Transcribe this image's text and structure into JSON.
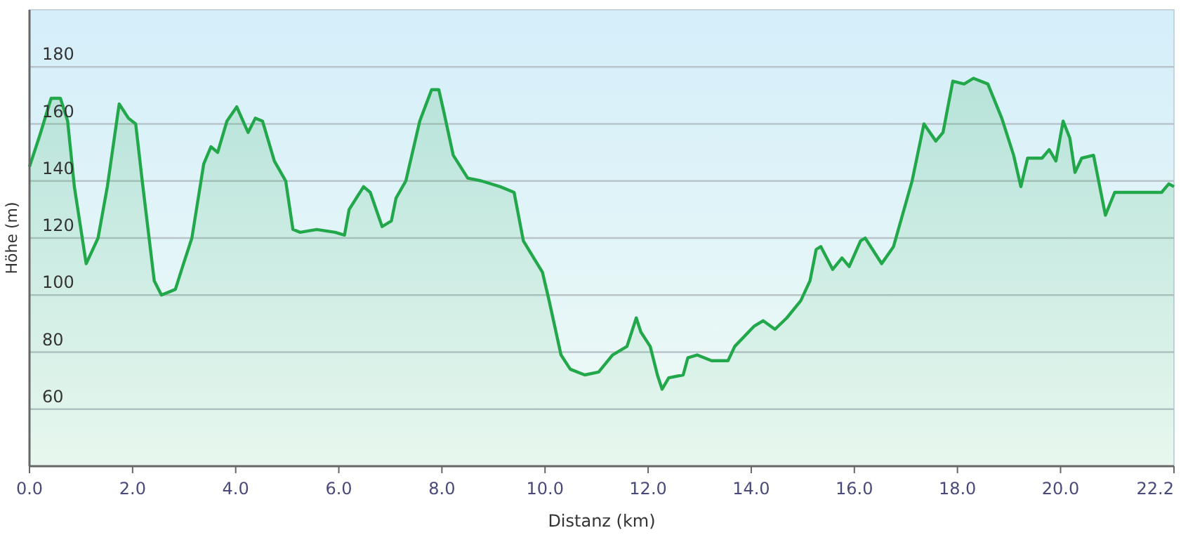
{
  "chart_data": {
    "type": "area",
    "xlabel": "Distanz  (km)",
    "ylabel": "Höhe (m)",
    "xlim": [
      0,
      22.2
    ],
    "ylim": [
      40,
      200
    ],
    "xticks": [
      {
        "value": 0,
        "label": "0.0"
      },
      {
        "value": 2,
        "label": "2.0"
      },
      {
        "value": 4,
        "label": "4.0"
      },
      {
        "value": 6,
        "label": "6.0"
      },
      {
        "value": 8,
        "label": "8.0"
      },
      {
        "value": 10,
        "label": "10.0"
      },
      {
        "value": 12,
        "label": "12.0"
      },
      {
        "value": 14,
        "label": "14.0"
      },
      {
        "value": 16,
        "label": "16.0"
      },
      {
        "value": 18,
        "label": "18.0"
      },
      {
        "value": 20,
        "label": "20.0"
      },
      22.2
    ],
    "yticks": [
      60,
      80,
      100,
      120,
      140,
      160,
      180
    ],
    "grid": "y",
    "line_style": "solid",
    "x": [
      0,
      0.2,
      0.42,
      0.6,
      0.74,
      0.87,
      1.1,
      1.33,
      1.51,
      1.74,
      1.92,
      2.06,
      2.2,
      2.42,
      2.56,
      2.83,
      2.97,
      3.15,
      3.38,
      3.52,
      3.65,
      3.83,
      4.02,
      4.24,
      4.38,
      4.52,
      4.75,
      4.97,
      5.11,
      5.25,
      5.57,
      5.93,
      6.11,
      6.2,
      6.48,
      6.61,
      6.84,
      7.02,
      7.11,
      7.3,
      7.57,
      7.8,
      7.94,
      8.04,
      8.22,
      8.5,
      8.77,
      9.13,
      9.4,
      9.58,
      9.95,
      10.08,
      10.31,
      10.49,
      10.77,
      11.04,
      11.31,
      11.59,
      11.77,
      11.86,
      12.04,
      12.18,
      12.27,
      12.4,
      12.68,
      12.77,
      12.95,
      13.23,
      13.55,
      13.68,
      14.05,
      14.23,
      14.46,
      14.69,
      14.96,
      15.14,
      15.26,
      15.35,
      15.58,
      15.76,
      15.9,
      16.12,
      16.21,
      16.53,
      16.76,
      17.12,
      17.35,
      17.58,
      17.72,
      17.91,
      18.13,
      18.31,
      18.59,
      18.86,
      19.09,
      19.23,
      19.36,
      19.64,
      19.78,
      19.91,
      20.05,
      20.18,
      20.28,
      20.41,
      20.64,
      20.87,
      21.05,
      21.23,
      21.78,
      21.96,
      22.1,
      22.2
    ],
    "series": [
      {
        "color": "#22a84a",
        "values": [
          145,
          156,
          169,
          169,
          161,
          138,
          111,
          120,
          138,
          167,
          162,
          160,
          138,
          105,
          100,
          102,
          110,
          120,
          146,
          152,
          150,
          161,
          166,
          157,
          162,
          161,
          147,
          140,
          123,
          122,
          123,
          122,
          121,
          130,
          138,
          136,
          124,
          126,
          134,
          140,
          161,
          172,
          172,
          164,
          149,
          141,
          140,
          138,
          136,
          119,
          108,
          98,
          79,
          74,
          72,
          73,
          79,
          82,
          92,
          87,
          82,
          72,
          67,
          71,
          72,
          78,
          79,
          77,
          77,
          82,
          89,
          91,
          88,
          92,
          98,
          105,
          116,
          117,
          109,
          113,
          110,
          119,
          120,
          111,
          117,
          140,
          160,
          154,
          157,
          175,
          174,
          176,
          174,
          162,
          149,
          138,
          148,
          148,
          151,
          147,
          161,
          155,
          143,
          148,
          149,
          128,
          136,
          136,
          136,
          136,
          139,
          138
        ]
      }
    ]
  }
}
